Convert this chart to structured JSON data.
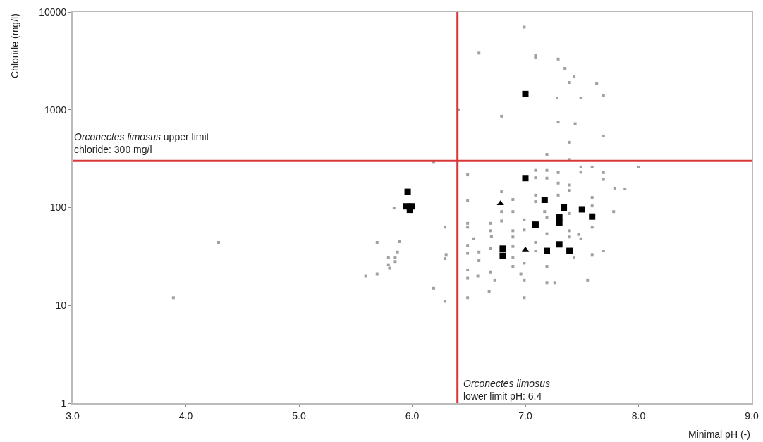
{
  "chart_data": {
    "type": "scatter",
    "xlabel": "Minimal pH (-)",
    "ylabel": "Chloride (mg/l)",
    "log": "y",
    "xlim": [
      3,
      9
    ],
    "xticks": [
      {
        "value": 3,
        "label": "3.0"
      },
      {
        "value": 4,
        "label": "4.0"
      },
      {
        "value": 5,
        "label": "5.0"
      },
      {
        "value": 6,
        "label": "6.0"
      },
      {
        "value": 7,
        "label": "7.0"
      },
      {
        "value": 8,
        "label": "8.0"
      },
      {
        "value": 9,
        "label": "9.0"
      }
    ],
    "ylim": [
      1,
      10000
    ],
    "yticks": [
      1,
      10,
      100,
      1000,
      10000
    ],
    "series": [
      {
        "color": "#a0a0a0",
        "marker": "square",
        "x": [
          6.99,
          6.59,
          7.09,
          7.09,
          7.29,
          7.35,
          7.43,
          7.39,
          7.63,
          7.28,
          7.49,
          7.69,
          6.79,
          6.41,
          7.29,
          7.44,
          7.69,
          7.39,
          7.19,
          6.19,
          7.39,
          7.49,
          7.49,
          7.59,
          7.09,
          7.19,
          7.29,
          6.49,
          7.09,
          7.19,
          7.69,
          7.69,
          7.29,
          7.39,
          7.39,
          6.79,
          7.79,
          7.88,
          7.29,
          7.09,
          7.09,
          6.89,
          6.49,
          7.59,
          7.59,
          5.84,
          6.79,
          6.89,
          7.17,
          7.78,
          7.39,
          7.19,
          6.99,
          6.79,
          6.49,
          6.69,
          7.59,
          6.49,
          6.29,
          6.69,
          6.89,
          6.99,
          7.39,
          7.39,
          7.19,
          6.7,
          6.89,
          7.47,
          7.49,
          6.54,
          5.69,
          5.89,
          6.49,
          6.69,
          6.89,
          7.09,
          7.09,
          5.87,
          6.49,
          6.59,
          7.59,
          7.69,
          6.3,
          5.79,
          5.85,
          6.29,
          6.89,
          7.43,
          5.85,
          6.99,
          5.79,
          6.49,
          7.19,
          6.59,
          6.89,
          6.69,
          5.8,
          5.69,
          5.59,
          6.96,
          6.49,
          6.58,
          6.73,
          7.55,
          6.99,
          7.19,
          7.26,
          6.68,
          6.19,
          6.49,
          6.99,
          6.29,
          4.29,
          3.89,
          8.0
        ],
        "values": [
          7000,
          3800,
          3600,
          3400,
          3300,
          2650,
          2170,
          1900,
          1850,
          1320,
          1320,
          1390,
          860,
          1000,
          750,
          720,
          540,
          465,
          350,
          295,
          310,
          260,
          230,
          260,
          240,
          240,
          228,
          216,
          202,
          200,
          228,
          194,
          178,
          170,
          150,
          145,
          158,
          155,
          134,
          134,
          115,
          121,
          117,
          127,
          104,
          99,
          91,
          91,
          91,
          91,
          87,
          80,
          75,
          73,
          69,
          69,
          63,
          63,
          63,
          58,
          58,
          59,
          58,
          50,
          54,
          51,
          50,
          53,
          48,
          48,
          44,
          45,
          41,
          38,
          40,
          44,
          36,
          35,
          34,
          35,
          33,
          36,
          33,
          31,
          31,
          30,
          31,
          31,
          28,
          27,
          26,
          23,
          25,
          29,
          25,
          22,
          24,
          21,
          20,
          21,
          19,
          20,
          18,
          18,
          18,
          17,
          17,
          14,
          15,
          12,
          12,
          11,
          44,
          12,
          260
        ]
      },
      {
        "color": "#000000",
        "marker": "square",
        "x": [
          7.0,
          7.0,
          5.96,
          5.95,
          6.0,
          5.98,
          7.17,
          7.09,
          7.34,
          7.5,
          7.59,
          7.3,
          7.3,
          7.3,
          7.39,
          7.19,
          6.8,
          6.8
        ],
        "values": [
          1450,
          200,
          145,
          103,
          103,
          95,
          120,
          67,
          100,
          96,
          81,
          80,
          70,
          42,
          36,
          36,
          38,
          32
        ]
      },
      {
        "color": "#000000",
        "marker": "triangle",
        "x": [
          7.0,
          6.78
        ],
        "values": [
          37,
          110
        ]
      }
    ],
    "ref_lines": [
      {
        "axis": "y",
        "value": 300,
        "color": "#d9383a",
        "label": "Orconectes limosus upper limit\nchloride: 300 mg/l"
      },
      {
        "axis": "x",
        "value": 6.4,
        "color": "#d9383a",
        "label": "Orconectes limosus\nlower limit pH: 6,4"
      }
    ]
  }
}
